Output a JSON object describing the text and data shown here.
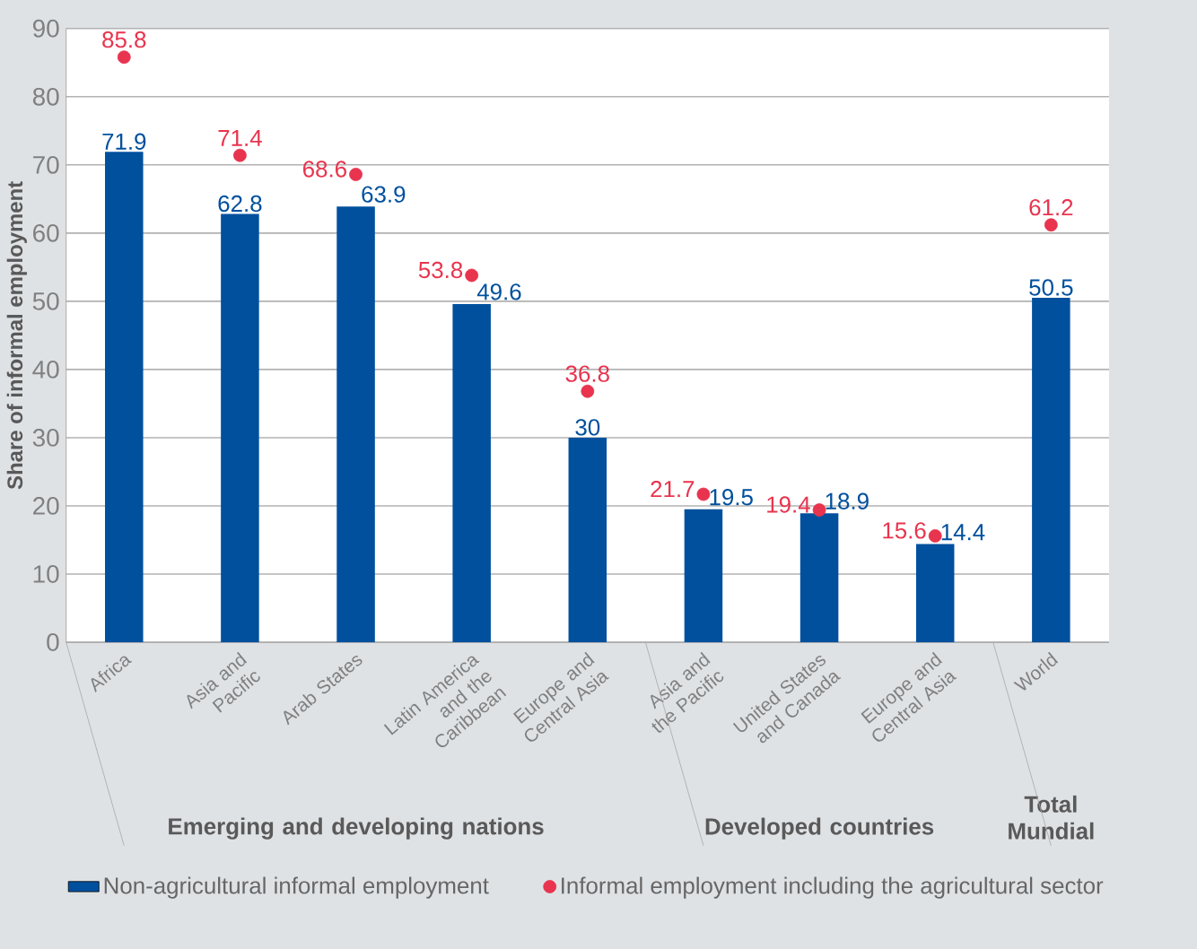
{
  "chart_data": {
    "type": "bar",
    "ylabel": "Share of informal employment",
    "categories": [
      "Africa",
      "Asia and Pacific",
      "Arab States",
      "Latin America and the Caribbean",
      "Europe and Central Asia",
      "Asia and the Pacific",
      "United States and Canada",
      "Europe and Central Asia",
      "World"
    ],
    "series": [
      {
        "name": "Non-agricultural informal employment",
        "color": "#00509e",
        "values": [
          71.9,
          62.8,
          63.9,
          49.6,
          30,
          19.5,
          18.9,
          14.4,
          50.5
        ]
      },
      {
        "name": "Informal employment including the agricultural sector",
        "type": "scatter",
        "color": "#e8344e",
        "values": [
          85.8,
          71.4,
          68.6,
          53.8,
          36.8,
          21.7,
          19.4,
          15.6,
          61.2
        ]
      }
    ],
    "ylim": [
      0,
      90
    ],
    "yticks": [
      0,
      10,
      20,
      30,
      40,
      50,
      60,
      70,
      80,
      90
    ],
    "grid": "y",
    "legend": "bottom",
    "marker": "circle",
    "data_labels": true,
    "annotations": [
      "Emerging and developing nations",
      "Developed countries",
      "Total Mundial"
    ]
  }
}
